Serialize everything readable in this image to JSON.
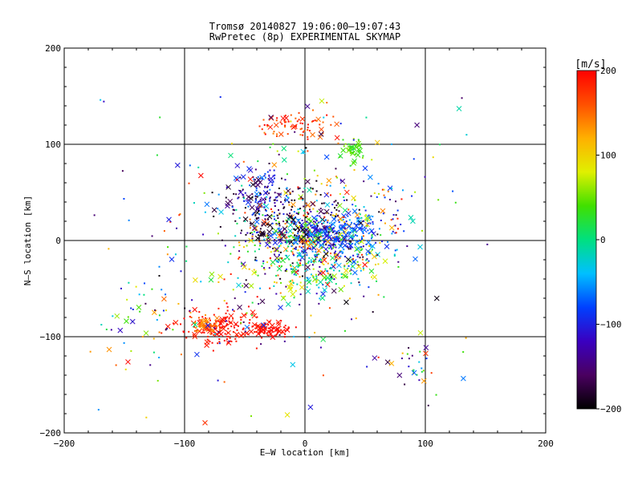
{
  "chart_data": {
    "type": "scatter",
    "title": "Tromsø 20140827 19:06:00–19:07:43",
    "subtitle": "RwPretec (8p) EXPERIMENTAL SKYMAP",
    "xlabel": "E–W location [km]",
    "ylabel": "N–S location [km]",
    "xlim": [
      -200,
      200
    ],
    "ylim": [
      -200,
      200
    ],
    "xticks": [
      -200,
      -100,
      0,
      100,
      200
    ],
    "yticks": [
      -200,
      -100,
      0,
      100,
      200
    ],
    "grid_lines": [
      -100,
      0,
      100
    ],
    "markers": [
      "dot",
      "x"
    ],
    "colorbar": {
      "label": "[m/s]",
      "min": -200,
      "max": 200,
      "ticks": [
        -200,
        -100,
        0,
        100,
        200
      ],
      "colormap": "black-purple-blue-cyan-green-yellow-orange-red"
    },
    "clusters": [
      {
        "x": 5,
        "y": 0,
        "sx": 28,
        "sy": 22,
        "n": 520,
        "v": [
          -200,
          200
        ]
      },
      {
        "x": 25,
        "y": 8,
        "sx": 20,
        "sy": 12,
        "n": 220,
        "v": [
          -110,
          -40
        ]
      },
      {
        "x": -20,
        "y": 30,
        "sx": 22,
        "sy": 20,
        "n": 150,
        "v": [
          -200,
          -160
        ]
      },
      {
        "x": -38,
        "y": 48,
        "sx": 12,
        "sy": 12,
        "n": 90,
        "v": [
          -170,
          -60
        ]
      },
      {
        "x": -70,
        "y": -90,
        "sx": 14,
        "sy": 9,
        "n": 150,
        "v": [
          180,
          200
        ]
      },
      {
        "x": -82,
        "y": -88,
        "sx": 6,
        "sy": 4,
        "n": 55,
        "v": [
          120,
          160
        ]
      },
      {
        "x": -32,
        "y": -93,
        "sx": 10,
        "sy": 4,
        "n": 80,
        "v": [
          185,
          200
        ]
      },
      {
        "x": -10,
        "y": 120,
        "sx": 16,
        "sy": 7,
        "n": 70,
        "v": [
          140,
          200
        ]
      },
      {
        "x": 40,
        "y": 93,
        "sx": 4,
        "sy": 6,
        "n": 40,
        "v": [
          20,
          60
        ]
      },
      {
        "x": 0,
        "y": 30,
        "sx": 55,
        "sy": 45,
        "n": 220,
        "v": [
          -200,
          200
        ]
      },
      {
        "x": 10,
        "y": -30,
        "sx": 25,
        "sy": 18,
        "n": 120,
        "v": [
          -50,
          100
        ]
      },
      {
        "x": -30,
        "y": -60,
        "sx": 70,
        "sy": 35,
        "n": 90,
        "v": [
          -200,
          200
        ]
      },
      {
        "x": 90,
        "y": -130,
        "sx": 8,
        "sy": 15,
        "n": 25,
        "v": [
          -200,
          200
        ]
      },
      {
        "x": -130,
        "y": -80,
        "sx": 20,
        "sy": 25,
        "n": 40,
        "v": [
          -200,
          200
        ]
      }
    ],
    "noise_points": 60
  }
}
